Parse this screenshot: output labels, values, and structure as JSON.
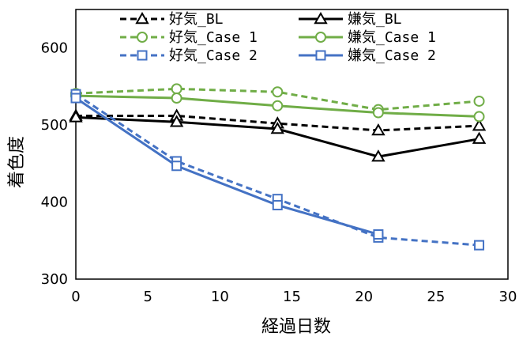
{
  "chart_data": {
    "type": "line",
    "xlabel": "経過日数",
    "ylabel": "着色度",
    "xlim": [
      0,
      30
    ],
    "ylim": [
      300,
      650
    ],
    "x_ticks": [
      "0",
      "5",
      "10",
      "15",
      "20",
      "25",
      "30"
    ],
    "y_ticks": [
      "300",
      "400",
      "500",
      "600"
    ],
    "grid": false,
    "legend_position": "top",
    "series": [
      {
        "name": "好気_BL",
        "color": "#000000",
        "dashed": true,
        "marker": "triangle",
        "x": [
          0,
          7,
          14,
          21,
          28
        ],
        "values": [
          512,
          512,
          502,
          493,
          499
        ]
      },
      {
        "name": "嫌気_BL",
        "color": "#000000",
        "dashed": false,
        "marker": "triangle",
        "x": [
          0,
          7,
          14,
          21,
          28
        ],
        "values": [
          510,
          504,
          495,
          459,
          482
        ]
      },
      {
        "name": "好気_Case 1",
        "color": "#70ad47",
        "dashed": true,
        "marker": "circle",
        "x": [
          0,
          7,
          14,
          21,
          28
        ],
        "values": [
          541,
          547,
          543,
          520,
          531
        ]
      },
      {
        "name": "嫌気_Case 1",
        "color": "#70ad47",
        "dashed": false,
        "marker": "circle",
        "x": [
          0,
          7,
          14,
          21,
          28
        ],
        "values": [
          538,
          535,
          525,
          516,
          511
        ]
      },
      {
        "name": "好気_Case 2",
        "color": "#4472c4",
        "dashed": true,
        "marker": "square",
        "x": [
          0,
          7,
          14,
          21,
          28
        ],
        "values": [
          540,
          453,
          404,
          354,
          344
        ]
      },
      {
        "name": "嫌気_Case 2",
        "color": "#4472c4",
        "dashed": false,
        "marker": "square",
        "x": [
          0,
          7,
          14,
          21
        ],
        "values": [
          535,
          447,
          396,
          358
        ]
      }
    ]
  }
}
